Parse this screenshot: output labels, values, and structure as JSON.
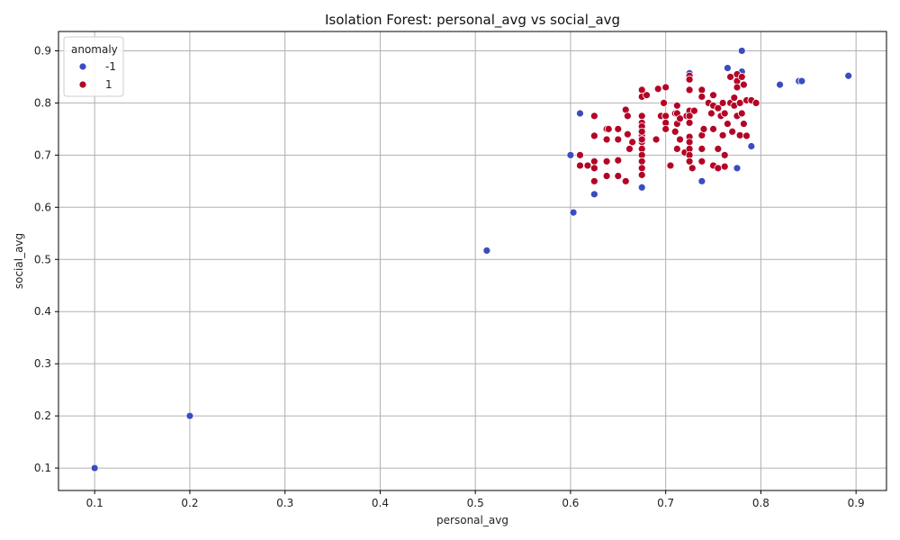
{
  "chart_data": {
    "type": "scatter",
    "title": "Isolation Forest: personal_avg vs social_avg",
    "xlabel": "personal_avg",
    "ylabel": "social_avg",
    "xlim": [
      0.062,
      0.932
    ],
    "ylim": [
      0.057,
      0.937
    ],
    "xticks": [
      "0.1",
      "0.2",
      "0.3",
      "0.4",
      "0.5",
      "0.6",
      "0.7",
      "0.8",
      "0.9"
    ],
    "yticks": [
      "0.1",
      "0.2",
      "0.3",
      "0.4",
      "0.5",
      "0.6",
      "0.7",
      "0.8",
      "0.9"
    ],
    "grid": true,
    "legend": {
      "title": "anomaly",
      "placement": "top-left",
      "entries": [
        "-1",
        "1"
      ]
    },
    "series": [
      {
        "name": "-1",
        "color": "#3b4cc0",
        "x": [
          0.1,
          0.2,
          0.512,
          0.6,
          0.603,
          0.61,
          0.625,
          0.675,
          0.725,
          0.738,
          0.765,
          0.775,
          0.78,
          0.78,
          0.79,
          0.82,
          0.84,
          0.843,
          0.892
        ],
        "y": [
          0.1,
          0.2,
          0.517,
          0.7,
          0.59,
          0.78,
          0.625,
          0.638,
          0.857,
          0.65,
          0.867,
          0.675,
          0.9,
          0.86,
          0.717,
          0.835,
          0.842,
          0.842,
          0.852
        ]
      },
      {
        "name": "1",
        "color": "#b40426",
        "x": [
          0.61,
          0.61,
          0.618,
          0.625,
          0.625,
          0.625,
          0.625,
          0.625,
          0.638,
          0.638,
          0.638,
          0.638,
          0.64,
          0.65,
          0.65,
          0.65,
          0.65,
          0.658,
          0.658,
          0.66,
          0.66,
          0.662,
          0.665,
          0.675,
          0.675,
          0.675,
          0.675,
          0.675,
          0.675,
          0.675,
          0.675,
          0.675,
          0.675,
          0.675,
          0.675,
          0.675,
          0.675,
          0.675,
          0.68,
          0.69,
          0.692,
          0.695,
          0.698,
          0.7,
          0.7,
          0.7,
          0.7,
          0.705,
          0.71,
          0.71,
          0.712,
          0.712,
          0.712,
          0.712,
          0.715,
          0.715,
          0.72,
          0.722,
          0.725,
          0.725,
          0.725,
          0.725,
          0.725,
          0.725,
          0.725,
          0.725,
          0.725,
          0.725,
          0.725,
          0.728,
          0.73,
          0.738,
          0.738,
          0.738,
          0.738,
          0.738,
          0.74,
          0.745,
          0.748,
          0.75,
          0.75,
          0.75,
          0.75,
          0.755,
          0.755,
          0.755,
          0.758,
          0.76,
          0.76,
          0.762,
          0.762,
          0.762,
          0.765,
          0.768,
          0.768,
          0.77,
          0.772,
          0.772,
          0.775,
          0.775,
          0.775,
          0.775,
          0.778,
          0.778,
          0.778,
          0.78,
          0.78,
          0.782,
          0.782,
          0.785,
          0.785,
          0.79,
          0.795
        ],
        "y": [
          0.7,
          0.68,
          0.68,
          0.775,
          0.737,
          0.688,
          0.675,
          0.65,
          0.75,
          0.73,
          0.688,
          0.66,
          0.75,
          0.75,
          0.73,
          0.69,
          0.66,
          0.787,
          0.65,
          0.775,
          0.74,
          0.712,
          0.725,
          0.825,
          0.812,
          0.775,
          0.762,
          0.75,
          0.738,
          0.725,
          0.712,
          0.7,
          0.688,
          0.675,
          0.662,
          0.755,
          0.745,
          0.73,
          0.815,
          0.73,
          0.827,
          0.775,
          0.8,
          0.83,
          0.775,
          0.762,
          0.75,
          0.68,
          0.78,
          0.745,
          0.795,
          0.78,
          0.76,
          0.712,
          0.77,
          0.73,
          0.705,
          0.775,
          0.852,
          0.845,
          0.825,
          0.785,
          0.775,
          0.762,
          0.735,
          0.725,
          0.712,
          0.7,
          0.688,
          0.675,
          0.785,
          0.825,
          0.812,
          0.738,
          0.712,
          0.688,
          0.75,
          0.8,
          0.78,
          0.815,
          0.795,
          0.75,
          0.68,
          0.79,
          0.712,
          0.675,
          0.775,
          0.8,
          0.738,
          0.78,
          0.7,
          0.678,
          0.76,
          0.85,
          0.8,
          0.745,
          0.81,
          0.795,
          0.855,
          0.842,
          0.83,
          0.775,
          0.8,
          0.738,
          0.8,
          0.85,
          0.78,
          0.835,
          0.76,
          0.805,
          0.737,
          0.805,
          0.8
        ]
      }
    ]
  }
}
